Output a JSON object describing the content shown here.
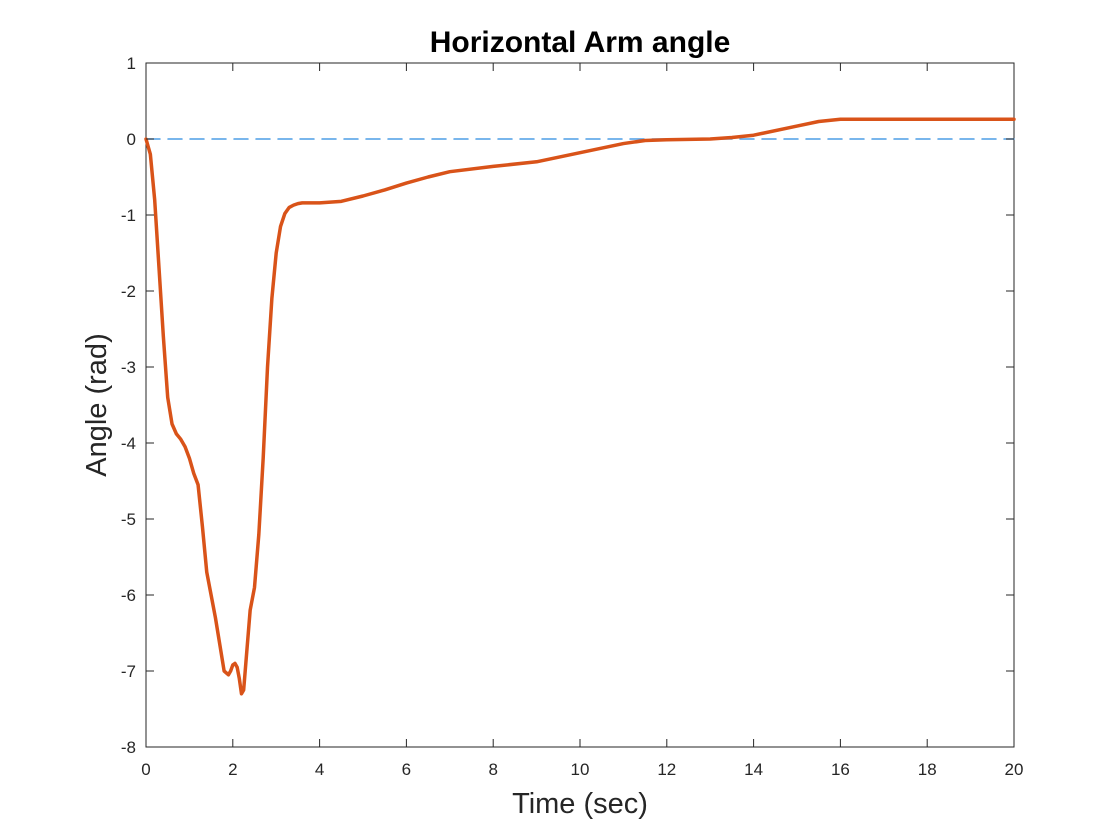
{
  "chart_data": {
    "type": "line",
    "title": "Horizontal Arm angle",
    "xlabel": "Time (sec)",
    "ylabel": "Angle (rad)",
    "xlim": [
      0,
      20
    ],
    "ylim": [
      -8,
      1
    ],
    "xticks": [
      0,
      2,
      4,
      6,
      8,
      10,
      12,
      14,
      16,
      18,
      20
    ],
    "yticks": [
      1,
      0,
      -1,
      -2,
      -3,
      -4,
      -5,
      -6,
      -7,
      -8
    ],
    "xtick_labels": [
      "0",
      "2",
      "4",
      "6",
      "8",
      "10",
      "12",
      "14",
      "16",
      "18",
      "20"
    ],
    "ytick_labels": [
      "1",
      "0",
      "-1",
      "-2",
      "-3",
      "-4",
      "-5",
      "-6",
      "-7",
      "-8"
    ],
    "grid": false,
    "legend": null,
    "series": [
      {
        "color": "#d95319",
        "style": "solid",
        "x": [
          0,
          0.1,
          0.2,
          0.3,
          0.4,
          0.5,
          0.6,
          0.7,
          0.8,
          0.9,
          1.0,
          1.1,
          1.2,
          1.3,
          1.4,
          1.5,
          1.6,
          1.7,
          1.8,
          1.9,
          1.95,
          2.0,
          2.05,
          2.1,
          2.15,
          2.2,
          2.25,
          2.3,
          2.4,
          2.5,
          2.6,
          2.7,
          2.8,
          2.9,
          3.0,
          3.1,
          3.2,
          3.3,
          3.4,
          3.5,
          3.6,
          3.8,
          4.0,
          4.5,
          5.0,
          5.5,
          6.0,
          6.5,
          7.0,
          8.0,
          9.0,
          10.0,
          11.0,
          11.5,
          12.0,
          13.0,
          13.5,
          14.0,
          15.0,
          15.5,
          16.0,
          17.0,
          18.0,
          19.0,
          20.0
        ],
        "y": [
          0,
          -0.2,
          -0.8,
          -1.7,
          -2.6,
          -3.4,
          -3.75,
          -3.88,
          -3.95,
          -4.05,
          -4.2,
          -4.4,
          -4.55,
          -5.1,
          -5.7,
          -6.0,
          -6.3,
          -6.65,
          -7.0,
          -7.05,
          -7.0,
          -6.92,
          -6.9,
          -6.95,
          -7.1,
          -7.3,
          -7.25,
          -6.9,
          -6.2,
          -5.9,
          -5.2,
          -4.2,
          -3.0,
          -2.1,
          -1.5,
          -1.15,
          -0.98,
          -0.9,
          -0.87,
          -0.85,
          -0.84,
          -0.84,
          -0.84,
          -0.82,
          -0.75,
          -0.67,
          -0.58,
          -0.5,
          -0.43,
          -0.36,
          -0.3,
          -0.18,
          -0.06,
          -0.02,
          -0.01,
          0.0,
          0.02,
          0.05,
          0.17,
          0.23,
          0.26,
          0.26,
          0.26,
          0.26,
          0.26
        ]
      },
      {
        "color": "#4d9ee6",
        "style": "dashed",
        "x": [
          0,
          20
        ],
        "y": [
          0,
          0
        ]
      }
    ]
  }
}
